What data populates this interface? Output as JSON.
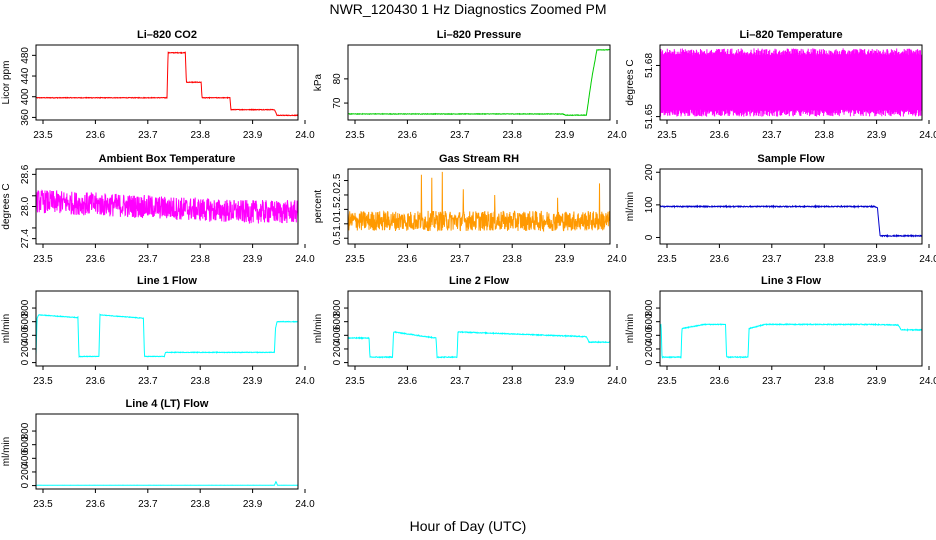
{
  "figure": {
    "title": "NWR_120430  1 Hz Diagnostics Zoomed PM",
    "xlabel": "Hour of Day (UTC)"
  },
  "chart_data": [
    {
      "type": "line",
      "title": "Li–820 CO2",
      "ylabel": "Licor ppm",
      "color": "#ff0000",
      "xlim": [
        23.5,
        24.0
      ],
      "ylim": [
        355,
        500
      ],
      "xticks": [
        "23.5",
        "23.6",
        "23.7",
        "23.8",
        "23.9",
        "24.0"
      ],
      "yticks": [
        {
          "v": 360,
          "label": "360"
        },
        {
          "v": 400,
          "label": "400"
        },
        {
          "v": 440,
          "label": "440"
        },
        {
          "v": 480,
          "label": "480"
        }
      ],
      "series": [
        {
          "x": [
            23.5,
            23.75,
            23.752,
            23.785,
            23.787,
            23.815,
            23.817,
            23.87,
            23.872,
            23.955,
            23.96,
            24.0
          ],
          "y": [
            398,
            398,
            485,
            485,
            428,
            428,
            398,
            398,
            375,
            375,
            364,
            364
          ]
        }
      ],
      "noise": 0.6
    },
    {
      "type": "line",
      "title": "Li–820 Pressure",
      "ylabel": "kPa",
      "color": "#00cc00",
      "xlim": [
        23.5,
        24.0
      ],
      "ylim": [
        63,
        94
      ],
      "xticks": [
        "23.5",
        "23.6",
        "23.7",
        "23.8",
        "23.9",
        "24.0"
      ],
      "yticks": [
        {
          "v": 70,
          "label": "70"
        },
        {
          "v": 80,
          "label": "80"
        }
      ],
      "series": [
        {
          "x": [
            23.5,
            23.91,
            23.915,
            23.955,
            23.965,
            23.975,
            24.0
          ],
          "y": [
            65.5,
            65.5,
            65,
            65,
            80,
            92,
            92
          ]
        }
      ],
      "noise": 0.1
    },
    {
      "type": "line",
      "title": "Li–820 Temperature",
      "ylabel": "degrees C",
      "color": "#ff00ff",
      "xlim": [
        23.5,
        24.0
      ],
      "ylim": [
        51.648,
        51.692
      ],
      "xticks": [
        "23.5",
        "23.6",
        "23.7",
        "23.8",
        "23.9",
        "24.0"
      ],
      "yticks": [
        {
          "v": 51.65,
          "label": "51.65"
        },
        {
          "v": 51.68,
          "label": "51.68"
        }
      ],
      "series": [
        {
          "x": [
            23.5,
            24.0
          ],
          "y": [
            51.666,
            51.666
          ]
        }
      ],
      "oscillate": [
        51.65,
        51.69
      ]
    },
    {
      "type": "line",
      "title": "Ambient Box Temperature",
      "ylabel": "degrees C",
      "color": "#ff00ff",
      "xlim": [
        23.5,
        24.0
      ],
      "ylim": [
        27.3,
        28.7
      ],
      "xticks": [
        "23.5",
        "23.6",
        "23.7",
        "23.8",
        "23.9",
        "24.0"
      ],
      "yticks": [
        {
          "v": 27.4,
          "label": "27.4"
        },
        {
          "v": 27.6,
          "label": ""
        },
        {
          "v": 28.0,
          "label": "28.0"
        },
        {
          "v": 28.2,
          "label": ""
        },
        {
          "v": 28.6,
          "label": "28.6"
        }
      ],
      "series": [
        {
          "x": [
            23.5,
            23.6,
            23.7,
            23.8,
            23.9,
            24.0
          ],
          "y": [
            28.1,
            28.05,
            28.0,
            27.95,
            27.9,
            27.9
          ]
        }
      ],
      "noise": 0.22
    },
    {
      "type": "line",
      "title": "Gas Stream RH",
      "ylabel": "percent",
      "color": "#ff9900",
      "xlim": [
        23.5,
        24.0
      ],
      "ylim": [
        0.3,
        2.9
      ],
      "xticks": [
        "23.5",
        "23.6",
        "23.7",
        "23.8",
        "23.9",
        "24.0"
      ],
      "yticks": [
        {
          "v": 0.5,
          "label": "0.5"
        },
        {
          "v": 1.0,
          "label": "1.0"
        },
        {
          "v": 1.5,
          "label": "1.5"
        },
        {
          "v": 2.0,
          "label": "2.0"
        },
        {
          "v": 2.5,
          "label": "2.5"
        }
      ],
      "series": [
        {
          "x": [
            23.5,
            24.0
          ],
          "y": [
            1.1,
            1.1
          ]
        }
      ],
      "noise": 0.35,
      "spikes": [
        [
          23.64,
          2.7
        ],
        [
          23.66,
          2.6
        ],
        [
          23.68,
          2.8
        ],
        [
          23.72,
          2.2
        ],
        [
          23.78,
          2.0
        ],
        [
          23.9,
          1.9
        ],
        [
          23.98,
          2.4
        ]
      ]
    },
    {
      "type": "line",
      "title": "Sample Flow",
      "ylabel": "ml/min",
      "color": "#0000cc",
      "xlim": [
        23.5,
        24.0
      ],
      "ylim": [
        -20,
        210
      ],
      "xticks": [
        "23.5",
        "23.6",
        "23.7",
        "23.8",
        "23.9",
        "24.0"
      ],
      "yticks": [
        {
          "v": 0,
          "label": "0"
        },
        {
          "v": 100,
          "label": "100"
        },
        {
          "v": 200,
          "label": "200"
        }
      ],
      "series": [
        {
          "x": [
            23.5,
            23.91,
            23.915,
            23.92,
            24.0
          ],
          "y": [
            95,
            95,
            90,
            5,
            5
          ]
        }
      ],
      "noise": 1.5
    },
    {
      "type": "line",
      "title": "Line 1 Flow",
      "ylabel": "ml/min",
      "color": "#00ffff",
      "xlim": [
        23.5,
        24.0
      ],
      "ylim": [
        -50,
        1050
      ],
      "xticks": [
        "23.5",
        "23.6",
        "23.7",
        "23.8",
        "23.9",
        "24.0"
      ],
      "yticks": [
        {
          "v": 0,
          "label": "0"
        },
        {
          "v": 200,
          "label": "200"
        },
        {
          "v": 400,
          "label": "400"
        },
        {
          "v": 600,
          "label": "600"
        },
        {
          "v": 800,
          "label": "800"
        }
      ],
      "series": [
        {
          "x": [
            23.5,
            23.502,
            23.505,
            23.58,
            23.582,
            23.62,
            23.622,
            23.705,
            23.707,
            23.745,
            23.747,
            23.955,
            23.957,
            23.96,
            24.0
          ],
          "y": [
            100,
            650,
            700,
            660,
            90,
            90,
            700,
            650,
            90,
            90,
            150,
            150,
            500,
            600,
            600
          ]
        }
      ],
      "noise": 4
    },
    {
      "type": "line",
      "title": "Line 2 Flow",
      "ylabel": "ml/min",
      "color": "#00ffff",
      "xlim": [
        23.5,
        24.0
      ],
      "ylim": [
        -50,
        1050
      ],
      "xticks": [
        "23.5",
        "23.6",
        "23.7",
        "23.8",
        "23.9",
        "24.0"
      ],
      "yticks": [
        {
          "v": 0,
          "label": "0"
        },
        {
          "v": 200,
          "label": "200"
        },
        {
          "v": 400,
          "label": "400"
        },
        {
          "v": 600,
          "label": "600"
        },
        {
          "v": 800,
          "label": "800"
        }
      ],
      "series": [
        {
          "x": [
            23.5,
            23.54,
            23.542,
            23.585,
            23.587,
            23.668,
            23.67,
            23.708,
            23.71,
            23.955,
            23.96,
            24.0
          ],
          "y": [
            360,
            360,
            80,
            80,
            450,
            360,
            80,
            80,
            450,
            380,
            300,
            300
          ]
        }
      ],
      "noise": 6
    },
    {
      "type": "line",
      "title": "Line 3 Flow",
      "ylabel": "ml/min",
      "color": "#00ffff",
      "xlim": [
        23.5,
        24.0
      ],
      "ylim": [
        -50,
        1050
      ],
      "xticks": [
        "23.5",
        "23.6",
        "23.7",
        "23.8",
        "23.9",
        "24.0"
      ],
      "yticks": [
        {
          "v": 0,
          "label": "0"
        },
        {
          "v": 200,
          "label": "200"
        },
        {
          "v": 400,
          "label": "400"
        },
        {
          "v": 600,
          "label": "600"
        },
        {
          "v": 800,
          "label": "800"
        }
      ],
      "series": [
        {
          "x": [
            23.5,
            23.502,
            23.504,
            23.54,
            23.542,
            23.585,
            23.625,
            23.627,
            23.668,
            23.67,
            23.7,
            23.9,
            23.955,
            23.96,
            24.0
          ],
          "y": [
            550,
            550,
            80,
            80,
            500,
            560,
            560,
            80,
            80,
            500,
            560,
            560,
            550,
            480,
            480
          ]
        }
      ],
      "noise": 6
    },
    {
      "type": "line",
      "title": "Line 4 (LT) Flow",
      "ylabel": "ml/min",
      "color": "#00ffff",
      "xlim": [
        23.5,
        24.0
      ],
      "ylim": [
        -50,
        1050
      ],
      "xticks": [
        "23.5",
        "23.6",
        "23.7",
        "23.8",
        "23.9",
        "24.0"
      ],
      "yticks": [
        {
          "v": 0,
          "label": "0"
        },
        {
          "v": 200,
          "label": "200"
        },
        {
          "v": 400,
          "label": "400"
        },
        {
          "v": 600,
          "label": "600"
        },
        {
          "v": 800,
          "label": "800"
        }
      ],
      "series": [
        {
          "x": [
            23.5,
            23.955,
            23.958,
            23.961,
            24.0
          ],
          "y": [
            5,
            5,
            60,
            5,
            5
          ]
        }
      ],
      "noise": 1
    }
  ]
}
